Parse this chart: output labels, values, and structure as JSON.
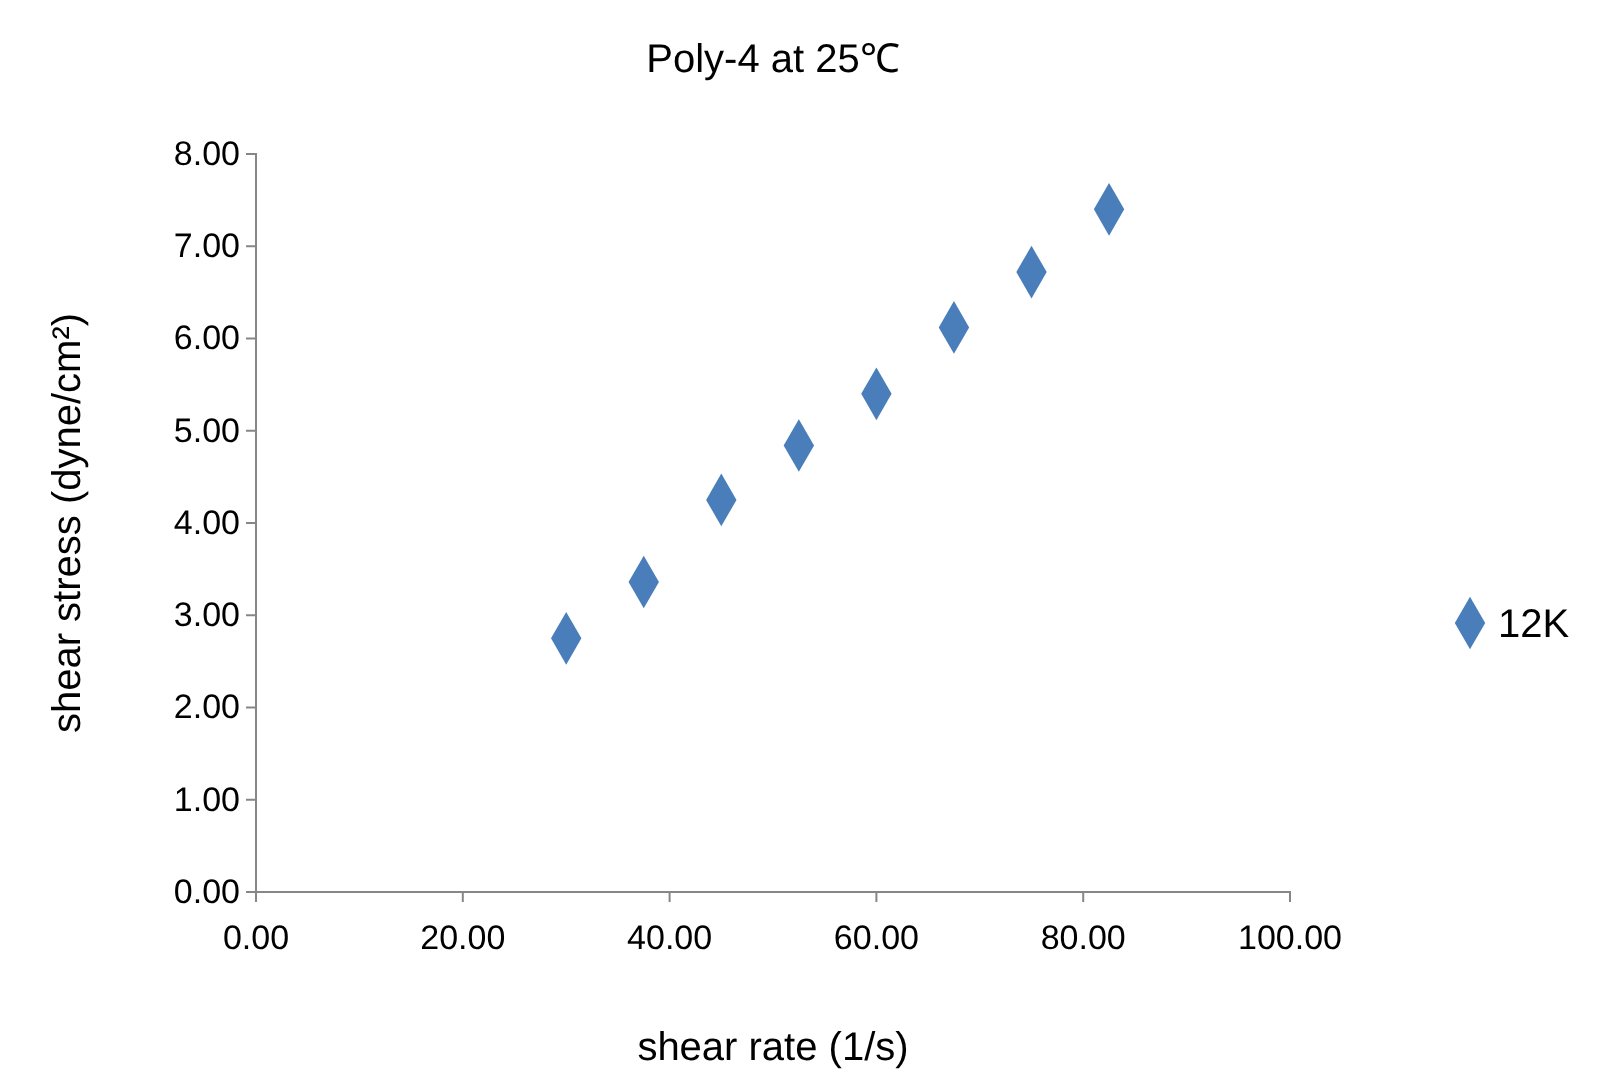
{
  "chart_data": {
    "type": "scatter",
    "title": "Poly-4 at 25℃",
    "xlabel": "shear rate (1/s)",
    "ylabel": "shear stress (dyne/cm²)",
    "x": [
      30,
      37.5,
      45,
      52.5,
      60,
      67.5,
      75,
      82.5
    ],
    "series": [
      {
        "name": "12K",
        "color": "#4a7ebb",
        "values": [
          2.75,
          3.36,
          4.25,
          4.84,
          5.4,
          6.12,
          6.72,
          7.4
        ]
      }
    ],
    "xlim": [
      0,
      100
    ],
    "xticks": [
      {
        "value": 0,
        "label": "0.00"
      },
      {
        "value": 20,
        "label": "20.00"
      },
      {
        "value": 40,
        "label": "40.00"
      },
      {
        "value": 60,
        "label": "60.00"
      },
      {
        "value": 80,
        "label": "80.00"
      },
      {
        "value": 100,
        "label": "100.00"
      }
    ],
    "ylim": [
      0,
      8
    ],
    "yticks": [
      {
        "value": 0,
        "label": "0.00"
      },
      {
        "value": 1,
        "label": "1.00"
      },
      {
        "value": 2,
        "label": "2.00"
      },
      {
        "value": 3,
        "label": "3.00"
      },
      {
        "value": 4,
        "label": "4.00"
      },
      {
        "value": 5,
        "label": "5.00"
      },
      {
        "value": 6,
        "label": "6.00"
      },
      {
        "value": 7,
        "label": "7.00"
      },
      {
        "value": 8,
        "label": "8.00"
      }
    ],
    "grid": false,
    "legend": "right",
    "marker": "diamond"
  }
}
